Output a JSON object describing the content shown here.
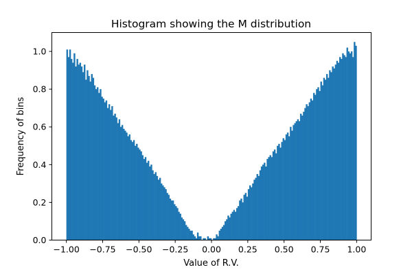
{
  "chart_data": {
    "type": "bar",
    "title": "Histogram showing the M distribution",
    "xlabel": "Value of R.V.",
    "ylabel": "Frequency of bins",
    "xlim": [
      -1.1,
      1.1
    ],
    "ylim": [
      0,
      1.1
    ],
    "xticks": [
      "−1.00",
      "−0.75",
      "−0.50",
      "−0.25",
      "0.00",
      "0.25",
      "0.50",
      "0.75",
      "1.00"
    ],
    "xtick_values": [
      -1.0,
      -0.75,
      -0.5,
      -0.25,
      0.0,
      0.25,
      0.5,
      0.75,
      1.0
    ],
    "yticks": [
      "0.0",
      "0.2",
      "0.4",
      "0.6",
      "0.8",
      "1.0"
    ],
    "ytick_values": [
      0.0,
      0.2,
      0.4,
      0.6,
      0.8,
      1.0
    ],
    "bin_range": [
      -1.0,
      1.0
    ],
    "bin_width": 0.01,
    "bar_color": "#1f77b4",
    "grid": false,
    "values": [
      1.01,
      0.97,
      1.01,
      0.96,
      0.94,
      0.99,
      0.92,
      0.96,
      0.93,
      0.94,
      0.92,
      0.89,
      0.93,
      0.85,
      0.9,
      0.87,
      0.84,
      0.88,
      0.86,
      0.82,
      0.8,
      0.81,
      0.78,
      0.8,
      0.76,
      0.75,
      0.73,
      0.74,
      0.7,
      0.72,
      0.69,
      0.71,
      0.66,
      0.67,
      0.65,
      0.62,
      0.64,
      0.6,
      0.61,
      0.59,
      0.58,
      0.57,
      0.55,
      0.56,
      0.53,
      0.52,
      0.53,
      0.5,
      0.51,
      0.49,
      0.48,
      0.47,
      0.45,
      0.43,
      0.44,
      0.41,
      0.42,
      0.39,
      0.4,
      0.37,
      0.35,
      0.36,
      0.34,
      0.32,
      0.33,
      0.3,
      0.29,
      0.28,
      0.27,
      0.25,
      0.24,
      0.22,
      0.21,
      0.21,
      0.19,
      0.18,
      0.17,
      0.15,
      0.14,
      0.12,
      0.11,
      0.1,
      0.08,
      0.07,
      0.06,
      0.05,
      0.05,
      0.03,
      0.02,
      0.01,
      0.04,
      0.02,
      0.02,
      0.0,
      0.01,
      0.01,
      0.0,
      0.02,
      0.01,
      0.01,
      0.0,
      0.01,
      0.01,
      0.03,
      0.02,
      0.05,
      0.06,
      0.07,
      0.08,
      0.1,
      0.11,
      0.13,
      0.12,
      0.14,
      0.15,
      0.16,
      0.15,
      0.17,
      0.18,
      0.21,
      0.22,
      0.2,
      0.24,
      0.25,
      0.23,
      0.27,
      0.29,
      0.28,
      0.3,
      0.32,
      0.33,
      0.35,
      0.34,
      0.37,
      0.39,
      0.4,
      0.41,
      0.39,
      0.43,
      0.44,
      0.45,
      0.44,
      0.47,
      0.48,
      0.46,
      0.5,
      0.51,
      0.49,
      0.52,
      0.54,
      0.53,
      0.56,
      0.57,
      0.55,
      0.6,
      0.58,
      0.61,
      0.62,
      0.63,
      0.64,
      0.63,
      0.67,
      0.66,
      0.68,
      0.7,
      0.72,
      0.71,
      0.73,
      0.75,
      0.74,
      0.78,
      0.77,
      0.8,
      0.81,
      0.79,
      0.84,
      0.82,
      0.86,
      0.85,
      0.88,
      0.86,
      0.9,
      0.89,
      0.92,
      0.91,
      0.93,
      0.95,
      0.94,
      0.97,
      0.96,
      0.99,
      0.98,
      0.97,
      1.02,
      1.0,
      0.99,
      1.0,
      0.97,
      1.05,
      1.03
    ]
  }
}
